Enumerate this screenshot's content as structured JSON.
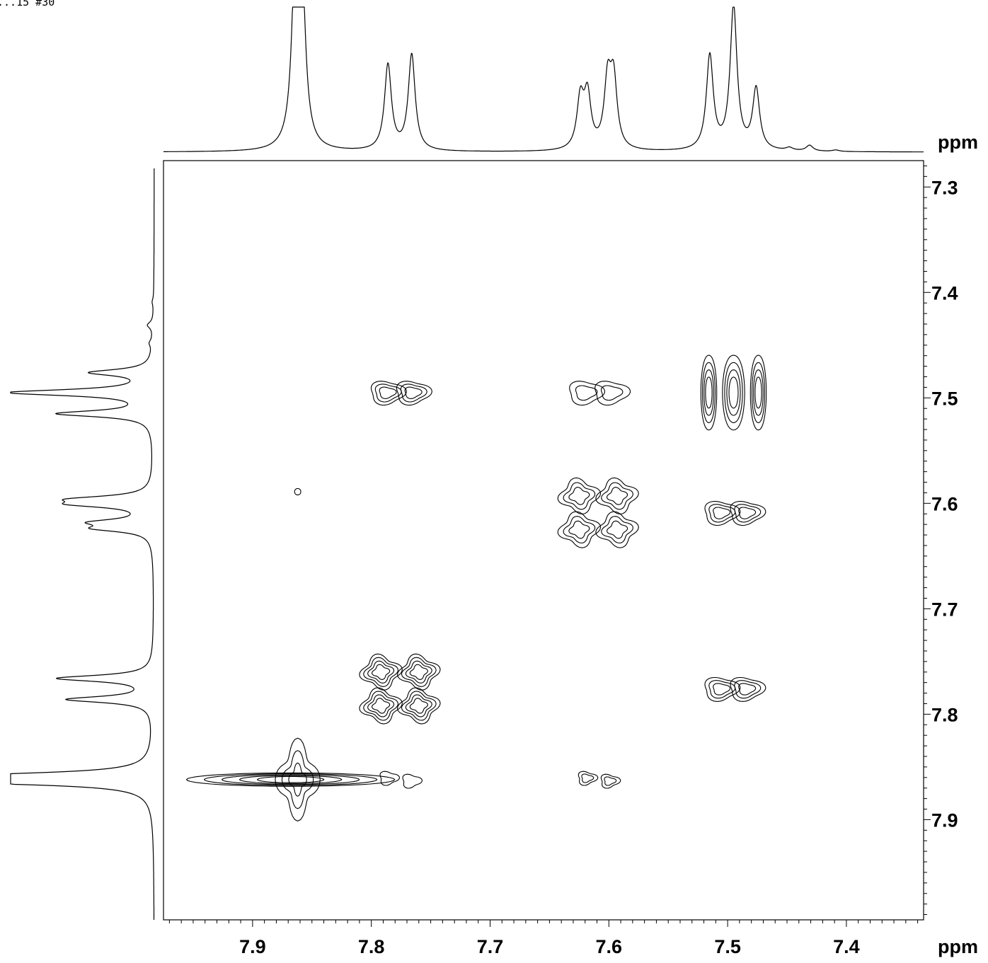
{
  "page_header": "...15 #30",
  "colors": {
    "ink": "#000000",
    "background": "#ffffff"
  },
  "chart_data": {
    "type": "2d-nmr-contour",
    "title": "",
    "xlabel": "ppm",
    "ylabel": "ppm",
    "xlim": [
      7.975,
      7.335
    ],
    "ylim": [
      7.275,
      7.995
    ],
    "x_ticks": [
      "7.9",
      "7.8",
      "7.7",
      "7.6",
      "7.5",
      "7.4"
    ],
    "y_ticks": [
      "7.3",
      "7.4",
      "7.5",
      "7.6",
      "7.7",
      "7.8",
      "7.9"
    ],
    "projection_peaks": [
      {
        "ppm": 7.864,
        "height": 0.74
      },
      {
        "ppm": 7.862,
        "height": 1.0
      },
      {
        "ppm": 7.858,
        "height": 0.72
      },
      {
        "ppm": 7.786,
        "height": 0.59
      },
      {
        "ppm": 7.766,
        "height": 0.66
      },
      {
        "ppm": 7.624,
        "height": 0.34
      },
      {
        "ppm": 7.618,
        "height": 0.36
      },
      {
        "ppm": 7.601,
        "height": 0.45
      },
      {
        "ppm": 7.596,
        "height": 0.46
      },
      {
        "ppm": 7.515,
        "height": 0.65
      },
      {
        "ppm": 7.495,
        "height": 0.99
      },
      {
        "ppm": 7.476,
        "height": 0.42
      },
      {
        "ppm": 7.448,
        "height": 0.02
      },
      {
        "ppm": 7.431,
        "height": 0.04
      },
      {
        "ppm": 7.409,
        "height": 0.01
      }
    ],
    "cross_peaks": [
      {
        "x": 7.862,
        "y": 7.862,
        "levels": 5,
        "type": "diagonal-elongated"
      },
      {
        "x": 7.776,
        "y": 7.776,
        "levels": 4,
        "type": "diagonal-multiplet"
      },
      {
        "x": 7.609,
        "y": 7.609,
        "levels": 3,
        "type": "diagonal-multiplet"
      },
      {
        "x": 7.495,
        "y": 7.495,
        "levels": 4,
        "type": "diagonal-triplet"
      },
      {
        "x": 7.776,
        "y": 7.495,
        "levels": 3,
        "type": "cross"
      },
      {
        "x": 7.609,
        "y": 7.495,
        "levels": 2,
        "type": "cross"
      },
      {
        "x": 7.495,
        "y": 7.609,
        "levels": 3,
        "type": "cross"
      },
      {
        "x": 7.495,
        "y": 7.776,
        "levels": 3,
        "type": "cross"
      },
      {
        "x": 7.776,
        "y": 7.862,
        "levels": 1,
        "type": "cross-weak"
      },
      {
        "x": 7.609,
        "y": 7.862,
        "levels": 2,
        "type": "cross-weak"
      },
      {
        "x": 7.862,
        "y": 7.589,
        "levels": 1,
        "type": "noise"
      }
    ]
  }
}
